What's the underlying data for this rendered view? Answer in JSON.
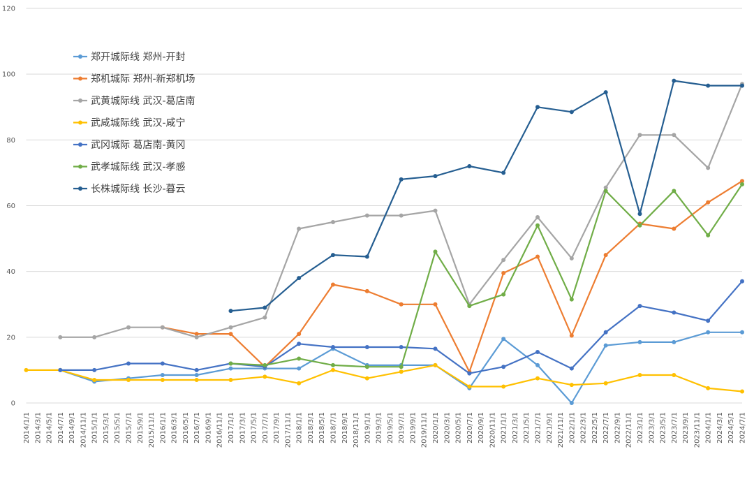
{
  "chart_data": {
    "type": "line",
    "title": "",
    "xlabel": "",
    "ylabel": "",
    "ylim": [
      0,
      120
    ],
    "yticks": [
      0,
      20,
      40,
      60,
      80,
      100,
      120
    ],
    "grid": "horizontal",
    "legend_position": "top-left",
    "categories": [
      "2014/1/1",
      "2014/3/1",
      "2014/5/1",
      "2014/7/1",
      "2014/9/1",
      "2014/11/1",
      "2015/1/1",
      "2015/3/1",
      "2015/5/1",
      "2015/7/1",
      "2015/9/1",
      "2015/11/1",
      "2016/1/1",
      "2016/3/1",
      "2016/5/1",
      "2016/7/1",
      "2016/9/1",
      "2016/11/1",
      "2017/1/1",
      "2017/3/1",
      "2017/5/1",
      "2017/7/1",
      "2017/9/1",
      "2017/11/1",
      "2018/1/1",
      "2018/3/1",
      "2018/5/1",
      "2018/7/1",
      "2018/9/1",
      "2018/11/1",
      "2019/1/1",
      "2019/3/1",
      "2019/5/1",
      "2019/7/1",
      "2019/9/1",
      "2019/11/1",
      "2020/1/1",
      "2020/3/1",
      "2020/5/1",
      "2020/7/1",
      "2020/9/1",
      "2020/11/1",
      "2021/1/1",
      "2021/3/1",
      "2021/5/1",
      "2021/7/1",
      "2021/9/1",
      "2021/11/1",
      "2022/1/1",
      "2022/3/1",
      "2022/5/1",
      "2022/7/1",
      "2022/9/1",
      "2022/11/1",
      "2023/1/1",
      "2023/3/1",
      "2023/5/1",
      "2023/7/1",
      "2023/9/1",
      "2023/11/1",
      "2024/1/1",
      "2024/3/1",
      "2024/5/1",
      "2024/7/1"
    ],
    "series": [
      {
        "name": "郑开城际线 郑州-开封",
        "color": "#5B9BD5",
        "points": [
          [
            "2014/7/1",
            10
          ],
          [
            "2015/1/1",
            6.5
          ],
          [
            "2015/7/1",
            7.5
          ],
          [
            "2016/1/1",
            8.5
          ],
          [
            "2016/7/1",
            8.5
          ],
          [
            "2017/1/1",
            10.5
          ],
          [
            "2017/7/1",
            10.5
          ],
          [
            "2018/1/1",
            10.5
          ],
          [
            "2018/7/1",
            16.5
          ],
          [
            "2019/1/1",
            11.5
          ],
          [
            "2019/7/1",
            11.5
          ],
          [
            "2020/1/1",
            11.5
          ],
          [
            "2020/7/1",
            4.5
          ],
          [
            "2021/1/1",
            19.5
          ],
          [
            "2021/7/1",
            11.5
          ],
          [
            "2022/1/1",
            0
          ],
          [
            "2022/7/1",
            17.5
          ],
          [
            "2023/1/1",
            18.5
          ],
          [
            "2023/7/1",
            18.5
          ],
          [
            "2024/1/1",
            21.5
          ],
          [
            "2024/7/1",
            21.5
          ]
        ]
      },
      {
        "name": "郑机城际 郑州-新郑机场",
        "color": "#ED7D31",
        "points": [
          [
            "2016/1/1",
            23
          ],
          [
            "2016/7/1",
            21
          ],
          [
            "2017/1/1",
            21
          ],
          [
            "2017/7/1",
            11
          ],
          [
            "2018/1/1",
            21
          ],
          [
            "2018/7/1",
            36
          ],
          [
            "2019/1/1",
            34
          ],
          [
            "2019/7/1",
            30
          ],
          [
            "2020/1/1",
            30
          ],
          [
            "2020/7/1",
            9.5
          ],
          [
            "2021/1/1",
            39.5
          ],
          [
            "2021/7/1",
            44.5
          ],
          [
            "2022/1/1",
            20.5
          ],
          [
            "2022/7/1",
            45
          ],
          [
            "2023/1/1",
            54.5
          ],
          [
            "2023/7/1",
            53
          ],
          [
            "2024/1/1",
            61
          ],
          [
            "2024/7/1",
            67.5
          ]
        ]
      },
      {
        "name": "武黄城际线 武汉-葛店南",
        "color": "#A5A5A5",
        "points": [
          [
            "2014/7/1",
            20
          ],
          [
            "2015/1/1",
            20
          ],
          [
            "2015/7/1",
            23
          ],
          [
            "2016/1/1",
            23
          ],
          [
            "2016/7/1",
            20
          ],
          [
            "2017/1/1",
            23
          ],
          [
            "2017/7/1",
            26
          ],
          [
            "2018/1/1",
            53
          ],
          [
            "2018/7/1",
            55
          ],
          [
            "2019/1/1",
            57
          ],
          [
            "2019/7/1",
            57
          ],
          [
            "2020/1/1",
            58.5
          ],
          [
            "2020/7/1",
            30
          ],
          [
            "2021/1/1",
            43.5
          ],
          [
            "2021/7/1",
            56.5
          ],
          [
            "2022/1/1",
            44
          ],
          [
            "2022/7/1",
            65.5
          ],
          [
            "2023/1/1",
            81.5
          ],
          [
            "2023/7/1",
            81.5
          ],
          [
            "2024/1/1",
            71.5
          ],
          [
            "2024/7/1",
            97
          ]
        ]
      },
      {
        "name": "武咸城际线 武汉-咸宁",
        "color": "#FFC000",
        "points": [
          [
            "2014/1/1",
            10
          ],
          [
            "2014/7/1",
            10
          ],
          [
            "2015/1/1",
            7
          ],
          [
            "2015/7/1",
            7
          ],
          [
            "2016/1/1",
            7
          ],
          [
            "2016/7/1",
            7
          ],
          [
            "2017/1/1",
            7
          ],
          [
            "2017/7/1",
            8
          ],
          [
            "2018/1/1",
            6
          ],
          [
            "2018/7/1",
            10
          ],
          [
            "2019/1/1",
            7.5
          ],
          [
            "2019/7/1",
            9.5
          ],
          [
            "2020/1/1",
            11.5
          ],
          [
            "2020/7/1",
            5
          ],
          [
            "2021/1/1",
            5
          ],
          [
            "2021/7/1",
            7.5
          ],
          [
            "2022/1/1",
            5.5
          ],
          [
            "2022/7/1",
            6
          ],
          [
            "2023/1/1",
            8.5
          ],
          [
            "2023/7/1",
            8.5
          ],
          [
            "2024/1/1",
            4.5
          ],
          [
            "2024/7/1",
            3.5
          ]
        ]
      },
      {
        "name": "武冈城际 葛店南-黄冈",
        "color": "#4472C4",
        "points": [
          [
            "2014/7/1",
            10
          ],
          [
            "2015/1/1",
            10
          ],
          [
            "2015/7/1",
            12
          ],
          [
            "2016/1/1",
            12
          ],
          [
            "2016/7/1",
            10
          ],
          [
            "2017/1/1",
            12
          ],
          [
            "2017/7/1",
            11
          ],
          [
            "2018/1/1",
            18
          ],
          [
            "2018/7/1",
            17
          ],
          [
            "2019/1/1",
            17
          ],
          [
            "2019/7/1",
            17
          ],
          [
            "2020/1/1",
            16.5
          ],
          [
            "2020/7/1",
            9
          ],
          [
            "2021/1/1",
            11
          ],
          [
            "2021/7/1",
            15.5
          ],
          [
            "2022/1/1",
            10.5
          ],
          [
            "2022/7/1",
            21.5
          ],
          [
            "2023/1/1",
            29.5
          ],
          [
            "2023/7/1",
            27.5
          ],
          [
            "2024/1/1",
            25
          ],
          [
            "2024/7/1",
            37
          ]
        ]
      },
      {
        "name": "武孝城际线 武汉-孝感",
        "color": "#70AD47",
        "points": [
          [
            "2017/1/1",
            12
          ],
          [
            "2017/7/1",
            11.5
          ],
          [
            "2018/1/1",
            13.5
          ],
          [
            "2018/7/1",
            11.5
          ],
          [
            "2019/1/1",
            11
          ],
          [
            "2019/7/1",
            11
          ],
          [
            "2020/1/1",
            46
          ],
          [
            "2020/7/1",
            29.5
          ],
          [
            "2021/1/1",
            33
          ],
          [
            "2021/7/1",
            54
          ],
          [
            "2022/1/1",
            31.5
          ],
          [
            "2022/7/1",
            64.5
          ],
          [
            "2023/1/1",
            54
          ],
          [
            "2023/7/1",
            64.5
          ],
          [
            "2024/1/1",
            51
          ],
          [
            "2024/7/1",
            66.5
          ]
        ]
      },
      {
        "name": "长株城际线 长沙-暮云",
        "color": "#255E91",
        "points": [
          [
            "2017/1/1",
            28
          ],
          [
            "2017/7/1",
            29
          ],
          [
            "2018/1/1",
            38
          ],
          [
            "2018/7/1",
            45
          ],
          [
            "2019/1/1",
            44.5
          ],
          [
            "2019/7/1",
            68
          ],
          [
            "2020/1/1",
            69
          ],
          [
            "2020/7/1",
            72
          ],
          [
            "2021/1/1",
            70
          ],
          [
            "2021/7/1",
            90
          ],
          [
            "2022/1/1",
            88.5
          ],
          [
            "2022/7/1",
            94.5
          ],
          [
            "2023/1/1",
            57.5
          ],
          [
            "2023/7/1",
            98
          ],
          [
            "2024/1/1",
            96.5
          ],
          [
            "2024/7/1",
            96.5
          ]
        ]
      }
    ]
  }
}
